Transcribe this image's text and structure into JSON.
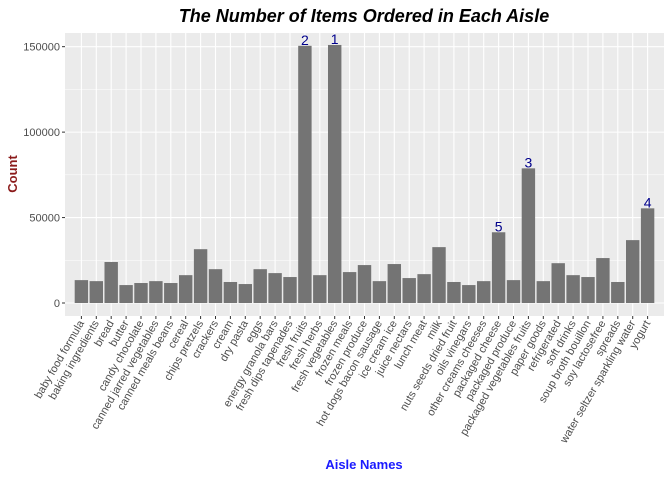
{
  "chart_data": {
    "type": "bar",
    "title": "The Number of Items Ordered in Each Aisle",
    "x_label": "Aisle Names",
    "y_label": "Count",
    "categories": [
      "baby food formula",
      "baking ingredients",
      "bread",
      "butter",
      "candy chocolate",
      "canned jarred vegetables",
      "canned meals beans",
      "cereal",
      "chips pretzels",
      "crackers",
      "cream",
      "dry pasta",
      "eggs",
      "energy granola bars",
      "fresh dips tapenades",
      "fresh fruits",
      "fresh herbs",
      "fresh vegetables",
      "frozen meals",
      "frozen produce",
      "hot dogs bacon sausage",
      "ice cream ice",
      "juice nectars",
      "lunch meat",
      "milk",
      "nuts seeds dried fruit",
      "oils vinegars",
      "other creams cheeses",
      "packaged cheese",
      "packaged produce",
      "packaged vegetables fruits",
      "paper goods",
      "refrigerated",
      "soft drinks",
      "soup broth bouillon",
      "soy lactosefree",
      "spreads",
      "water seltzer sparkling water",
      "yogurt"
    ],
    "values": [
      13400,
      12800,
      24000,
      10500,
      11700,
      12800,
      11700,
      16300,
      31500,
      19800,
      12300,
      11100,
      19800,
      17500,
      15200,
      150500,
      16300,
      151000,
      18100,
      22200,
      12800,
      22800,
      14600,
      16900,
      32700,
      12300,
      10500,
      12800,
      41400,
      13400,
      78800,
      12800,
      23300,
      16300,
      15200,
      26300,
      12300,
      36800,
      55400
    ],
    "rank_labels": [
      null,
      null,
      null,
      null,
      null,
      null,
      null,
      null,
      null,
      null,
      null,
      null,
      null,
      null,
      null,
      "2",
      null,
      "1",
      null,
      null,
      null,
      null,
      null,
      null,
      null,
      null,
      null,
      null,
      "5",
      null,
      "3",
      null,
      null,
      null,
      null,
      null,
      null,
      null,
      "4"
    ],
    "color": "#747474",
    "rank_label_color": "#00008B",
    "ylim": [
      -7600,
      158000
    ],
    "yticks": [
      0,
      50000,
      100000,
      150000
    ],
    "yminor_ticks": [
      25000,
      75000,
      125000
    ],
    "grid": true
  }
}
